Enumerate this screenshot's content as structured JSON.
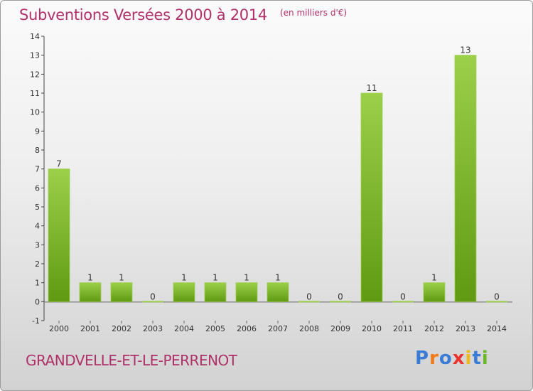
{
  "chart_data": {
    "type": "bar",
    "title": "Subventions Versées 2000 à 2014",
    "subtitle": "(en milliers d'€)",
    "categories": [
      "2000",
      "2001",
      "2002",
      "2003",
      "2004",
      "2005",
      "2006",
      "2007",
      "2008",
      "2009",
      "2010",
      "2011",
      "2012",
      "2013",
      "2014"
    ],
    "values": [
      7,
      1,
      1,
      0,
      1,
      1,
      1,
      1,
      0,
      0,
      11,
      0,
      1,
      13,
      0
    ],
    "data_labels": [
      "7",
      "1",
      "1",
      "0",
      "1",
      "1",
      "1",
      "1",
      "0",
      "0",
      "11",
      "0",
      "1",
      "13",
      "0"
    ],
    "ylim": [
      -1,
      14
    ],
    "yticks": [
      "-1",
      "0",
      "1",
      "2",
      "3",
      "4",
      "5",
      "6",
      "7",
      "8",
      "9",
      "10",
      "11",
      "12",
      "13",
      "14"
    ],
    "grid": false,
    "xlabel": "",
    "ylabel": ""
  },
  "footer": {
    "commune": "GRANDVELLE-ET-LE-PERRENOT",
    "logo_letters": [
      "P",
      "r",
      "o",
      "x",
      "i",
      "t",
      "i"
    ]
  },
  "colors": {
    "title": "#b0306a",
    "bar_light": "#9ccf4a",
    "bar_dark": "#5f9a12",
    "logo": [
      "#3a7bd5",
      "#f07a1a",
      "#3a7bd5",
      "#e8342a",
      "#f0b81a",
      "#3a7bd5",
      "#6ab82a"
    ]
  }
}
